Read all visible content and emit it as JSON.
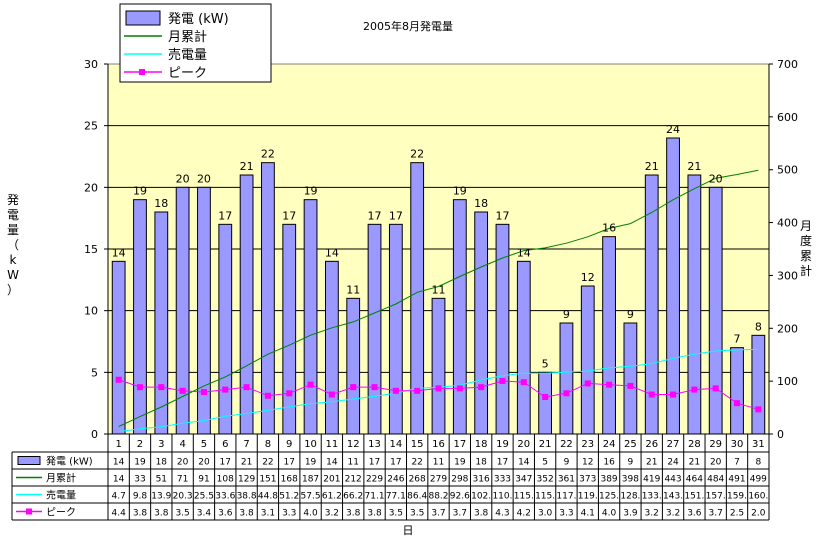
{
  "chart_data": {
    "type": "bar",
    "title": "2005年8月発電量",
    "ylabel": "発電量（kW）",
    "y2label": "月度累計",
    "xlabel": "日",
    "ylim": [
      0,
      30
    ],
    "yticks": [
      0,
      5,
      10,
      15,
      20,
      25,
      30
    ],
    "y2lim": [
      0,
      700
    ],
    "y2ticks": [
      0,
      100,
      200,
      300,
      400,
      500,
      600,
      700
    ],
    "grid": true,
    "legend_position": "top-left",
    "categories": [
      "1",
      "2",
      "3",
      "4",
      "5",
      "6",
      "7",
      "8",
      "9",
      "10",
      "11",
      "12",
      "13",
      "14",
      "15",
      "16",
      "17",
      "18",
      "19",
      "20",
      "21",
      "22",
      "23",
      "24",
      "25",
      "26",
      "27",
      "28",
      "29",
      "30",
      "31"
    ],
    "series": [
      {
        "name": "発電 (kW)",
        "type": "bar",
        "axis": "left",
        "color": "#9999ff",
        "values": [
          14,
          19,
          18,
          20,
          20,
          17,
          21,
          22,
          17,
          19,
          14,
          11,
          17,
          17,
          22,
          11,
          19,
          18,
          17,
          14,
          5,
          9,
          12,
          16,
          9,
          21,
          24,
          21,
          20,
          7,
          8
        ],
        "table_labels": [
          "14",
          "19",
          "18",
          "20",
          "20",
          "17",
          "21",
          "22",
          "17",
          "19",
          "14",
          "11",
          "17",
          "17",
          "22",
          "11",
          "19",
          "18",
          "17",
          "14",
          "5",
          "9",
          "12",
          "16",
          "9",
          "21",
          "24",
          "21",
          "20",
          "7",
          "8"
        ]
      },
      {
        "name": "月累計",
        "type": "line",
        "axis": "right",
        "color": "#008000",
        "values": [
          14,
          33,
          51,
          71,
          91,
          108,
          129,
          151,
          168,
          187,
          201,
          212,
          229,
          246,
          268,
          279,
          298,
          316,
          333,
          347,
          352,
          361,
          373,
          389,
          398,
          419,
          443,
          464,
          484,
          491,
          499
        ],
        "table_labels": [
          "14",
          "33",
          "51",
          "71",
          "91",
          "108",
          "129",
          "151",
          "168",
          "187",
          "201",
          "212",
          "229",
          "246",
          "268",
          "279",
          "298",
          "316",
          "333",
          "347",
          "352",
          "361",
          "373",
          "389",
          "398",
          "419",
          "443",
          "464",
          "484",
          "491",
          "499"
        ]
      },
      {
        "name": "売電量",
        "type": "line",
        "axis": "right",
        "color": "#00ffff",
        "values": [
          4.7,
          9.8,
          13.9,
          20.3,
          25.5,
          33.6,
          38.8,
          44.8,
          51.2,
          57.5,
          61.2,
          66.2,
          71.1,
          77.1,
          86.4,
          88.2,
          92.6,
          102.1,
          110.1,
          115.1,
          115.1,
          117.1,
          119.1,
          125.1,
          128.1,
          133.1,
          143.1,
          151.1,
          157.1,
          159.1,
          160.1
        ],
        "table_labels": [
          "4.7",
          "9.8",
          "13.9",
          "20.3",
          "25.5",
          "33.6",
          "38.8",
          "44.8",
          "51.2",
          "57.5",
          "61.2",
          "66.2",
          "71.1",
          "77.1",
          "86.4",
          "88.2",
          "92.6",
          "102.",
          "110.",
          "115.",
          "115.",
          "117.",
          "119.",
          "125.",
          "128.",
          "133.",
          "143.",
          "151.",
          "157.",
          "159.",
          "160."
        ]
      },
      {
        "name": "ピーク",
        "type": "line",
        "axis": "left",
        "color": "#ff00ff",
        "marker": "square",
        "values": [
          4.4,
          3.8,
          3.8,
          3.5,
          3.4,
          3.6,
          3.8,
          3.1,
          3.3,
          4.0,
          3.2,
          3.8,
          3.8,
          3.5,
          3.5,
          3.7,
          3.7,
          3.8,
          4.3,
          4.2,
          3.0,
          3.3,
          4.1,
          4.0,
          3.9,
          3.2,
          3.2,
          3.6,
          3.7,
          2.5,
          2.0
        ],
        "table_labels": [
          "4.4",
          "3.8",
          "3.8",
          "3.5",
          "3.4",
          "3.6",
          "3.8",
          "3.1",
          "3.3",
          "4.0",
          "3.2",
          "3.8",
          "3.8",
          "3.5",
          "3.5",
          "3.7",
          "3.7",
          "3.8",
          "4.3",
          "4.2",
          "3.0",
          "3.3",
          "4.1",
          "4.0",
          "3.9",
          "3.2",
          "3.2",
          "3.6",
          "3.7",
          "2.5",
          "2.0"
        ]
      }
    ]
  },
  "colors": {
    "plot_background": "#ffffc0",
    "gridline": "#000000",
    "bar_fill": "#9999ff",
    "bar_stroke": "#000000"
  }
}
